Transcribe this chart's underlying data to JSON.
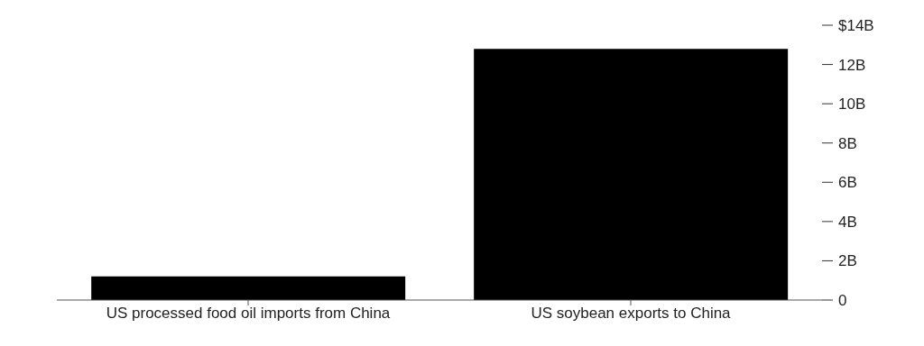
{
  "chart_data": {
    "type": "bar",
    "categories": [
      "US processed food oil imports from China",
      "US soybean exports to China"
    ],
    "values": [
      1.2,
      12.8
    ],
    "color": "#000000",
    "ylim": [
      0,
      14
    ],
    "yticks": [
      {
        "value": 0,
        "label": "0"
      },
      {
        "value": 2,
        "label": "2B"
      },
      {
        "value": 4,
        "label": "4B"
      },
      {
        "value": 6,
        "label": "6B"
      },
      {
        "value": 8,
        "label": "8B"
      },
      {
        "value": 10,
        "label": "10B"
      },
      {
        "value": 12,
        "label": "12B"
      },
      {
        "value": 14,
        "label": "$14B"
      }
    ],
    "grid": false
  }
}
